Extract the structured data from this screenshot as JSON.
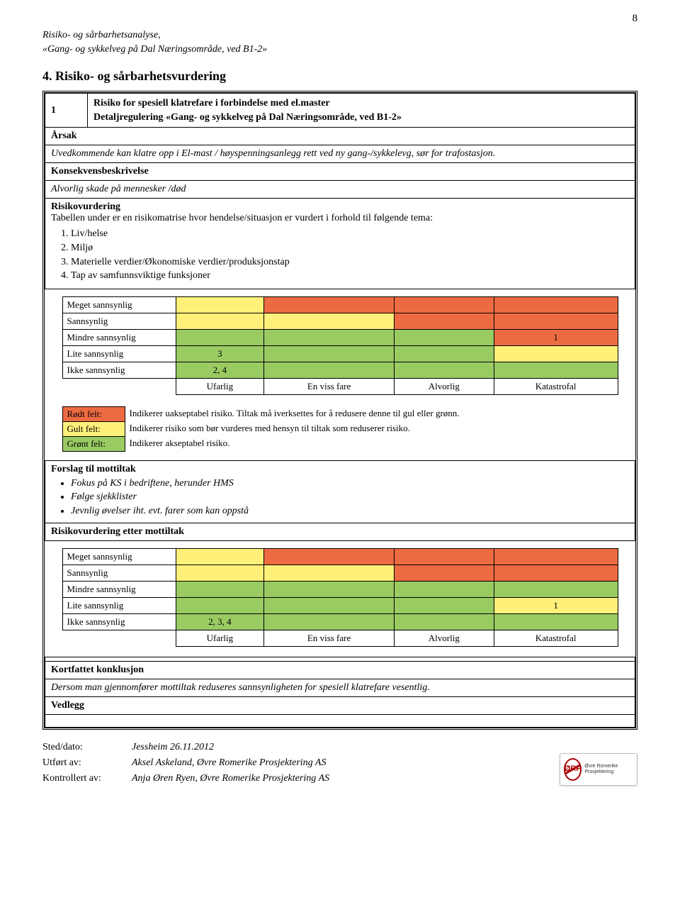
{
  "page_number": "8",
  "header": {
    "line1": "Risiko- og sårbarhetsanalyse,",
    "line2": "«Gang- og sykkelveg på Dal Næringsområde, ved B1-2»"
  },
  "section_title": "4. Risiko- og sårbarhetsvurdering",
  "title_row": {
    "num": "1",
    "line1": "Risiko for spesiell klatrefare i forbindelse med el.master",
    "line2": "Detaljregulering «Gang- og sykkelveg på Dal Næringsområde, ved B1-2»"
  },
  "arsak": {
    "label": "Årsak",
    "text": "Uvedkommende kan klatre opp i El-mast / høyspenningsanlegg rett ved ny gang-/sykkelevg, sør for trafostasjon."
  },
  "konsekvens": {
    "label": "Konsekvensbeskrivelse",
    "text": "Alvorlig skade på mennesker /død"
  },
  "risikovurdering": {
    "label": "Risikovurdering",
    "intro": "Tabellen under er en risikomatrise hvor hendelse/situasjon er vurdert i forhold til følgende tema:",
    "items": [
      "Liv/helse",
      "Miljø",
      "Materielle verdier/Økonomiske verdier/produksjonstap",
      "Tap av samfunnsviktige funksjoner"
    ]
  },
  "colors": {
    "green": "#9acb63",
    "yellow": "#fff07a",
    "red": "#ed6b42",
    "white": "#ffffff"
  },
  "matrix_labels": {
    "rows": [
      "Meget sannsynlig",
      "Sannsynlig",
      "Mindre sannsynlig",
      "Lite sannsynlig",
      "Ikke sannsynlig"
    ],
    "cols": [
      "Ufarlig",
      "En viss fare",
      "Alvorlig",
      "Katastrofal"
    ]
  },
  "matrix1": {
    "cells": [
      [
        {
          "c": "yellow",
          "v": ""
        },
        {
          "c": "red",
          "v": ""
        },
        {
          "c": "red",
          "v": ""
        },
        {
          "c": "red",
          "v": ""
        }
      ],
      [
        {
          "c": "yellow",
          "v": ""
        },
        {
          "c": "yellow",
          "v": ""
        },
        {
          "c": "red",
          "v": ""
        },
        {
          "c": "red",
          "v": ""
        }
      ],
      [
        {
          "c": "green",
          "v": ""
        },
        {
          "c": "green",
          "v": ""
        },
        {
          "c": "green",
          "v": ""
        },
        {
          "c": "red",
          "v": "1"
        }
      ],
      [
        {
          "c": "green",
          "v": "3"
        },
        {
          "c": "green",
          "v": ""
        },
        {
          "c": "green",
          "v": ""
        },
        {
          "c": "yellow",
          "v": ""
        }
      ],
      [
        {
          "c": "green",
          "v": "2, 4"
        },
        {
          "c": "green",
          "v": ""
        },
        {
          "c": "green",
          "v": ""
        },
        {
          "c": "green",
          "v": ""
        }
      ]
    ]
  },
  "legend": {
    "rows": [
      {
        "label": "Rødt felt:",
        "color": "red",
        "text": "Indikerer uakseptabel risiko. Tiltak må iverksettes for å redusere denne til gul eller grønn."
      },
      {
        "label": "Gult felt:",
        "color": "yellow",
        "text": "Indikerer risiko som bør vurderes med hensyn til tiltak som reduserer risiko."
      },
      {
        "label": "Grønt felt:",
        "color": "green",
        "text": "Indikerer akseptabel risiko."
      }
    ]
  },
  "mottiltak": {
    "label": "Forslag til mottiltak",
    "items": [
      "Fokus på KS i bedriftene, herunder HMS",
      "Følge sjekklister",
      "Jevnlig øvelser iht. evt. farer som kan oppstå"
    ]
  },
  "etter_label": "Risikovurdering etter mottiltak",
  "matrix2": {
    "cells": [
      [
        {
          "c": "yellow",
          "v": ""
        },
        {
          "c": "red",
          "v": ""
        },
        {
          "c": "red",
          "v": ""
        },
        {
          "c": "red",
          "v": ""
        }
      ],
      [
        {
          "c": "yellow",
          "v": ""
        },
        {
          "c": "yellow",
          "v": ""
        },
        {
          "c": "red",
          "v": ""
        },
        {
          "c": "red",
          "v": ""
        }
      ],
      [
        {
          "c": "green",
          "v": ""
        },
        {
          "c": "green",
          "v": ""
        },
        {
          "c": "green",
          "v": ""
        },
        {
          "c": "green",
          "v": ""
        }
      ],
      [
        {
          "c": "green",
          "v": ""
        },
        {
          "c": "green",
          "v": ""
        },
        {
          "c": "green",
          "v": ""
        },
        {
          "c": "yellow",
          "v": "1"
        }
      ],
      [
        {
          "c": "green",
          "v": "2, 3, 4"
        },
        {
          "c": "green",
          "v": ""
        },
        {
          "c": "green",
          "v": ""
        },
        {
          "c": "green",
          "v": ""
        }
      ]
    ]
  },
  "konklusjon": {
    "label": "Kortfattet konklusjon",
    "text": "Dersom man gjennomfører mottiltak reduseres sannsynligheten for spesiell klatrefare vesentlig."
  },
  "vedlegg_label": "Vedlegg",
  "footer": {
    "sted": "Sted/dato:",
    "sted_val": "Jessheim 26.11.2012",
    "utfort": "Utført av:",
    "utfort_val": "Aksel Askeland, Øvre Romerike Prosjektering AS",
    "kontroll": "Kontrollert av:",
    "kontroll_val": "Anja Øren Ryen, Øvre Romerike Prosjektering AS",
    "logo_abbr": "ØRP",
    "logo_text": "Øvre Romerike Prosjektering"
  }
}
